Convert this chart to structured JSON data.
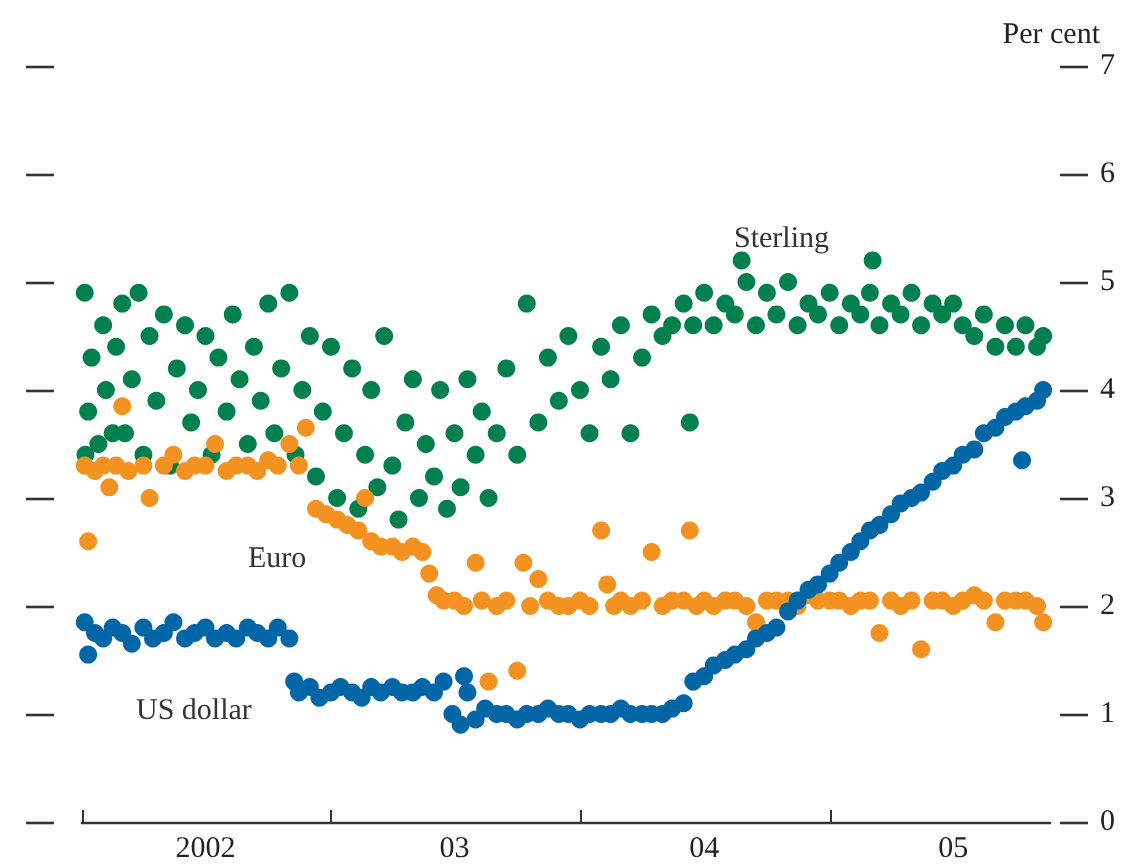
{
  "chart_data": {
    "type": "scatter",
    "ylabel": "Per cent",
    "marker": "circle",
    "grid": false,
    "legend": false,
    "xlim": [
      "2002-01-01",
      "2005-11-20"
    ],
    "xticks": [
      {
        "value": "2002-01-01",
        "label": null
      },
      {
        "value": "2002-07-01",
        "label": "2002"
      },
      {
        "value": "2003-01-01",
        "label": null
      },
      {
        "value": "2003-07-01",
        "label": "03"
      },
      {
        "value": "2004-01-01",
        "label": null
      },
      {
        "value": "2004-07-01",
        "label": "04"
      },
      {
        "value": "2005-01-01",
        "label": null
      },
      {
        "value": "2005-07-01",
        "label": "05"
      }
    ],
    "ylim": [
      0,
      7
    ],
    "yticks": [
      0,
      1,
      2,
      3,
      4,
      5,
      6,
      7
    ],
    "series": [
      {
        "name": "Sterling",
        "color": "#00804f",
        "x": [
          "2002-01-05",
          "2002-01-06",
          "2002-01-10",
          "2002-01-15",
          "2002-01-25",
          "2002-02-01",
          "2002-02-05",
          "2002-02-15",
          "2002-02-20",
          "2002-03-01",
          "2002-03-05",
          "2002-03-15",
          "2002-03-25",
          "2002-04-01",
          "2002-04-10",
          "2002-04-20",
          "2002-05-01",
          "2002-05-10",
          "2002-05-20",
          "2002-06-01",
          "2002-06-10",
          "2002-06-20",
          "2002-07-01",
          "2002-07-10",
          "2002-07-20",
          "2002-08-01",
          "2002-08-10",
          "2002-08-20",
          "2002-09-01",
          "2002-09-10",
          "2002-09-20",
          "2002-10-01",
          "2002-10-10",
          "2002-10-20",
          "2002-11-01",
          "2002-11-10",
          "2002-11-20",
          "2002-12-01",
          "2002-12-10",
          "2002-12-20",
          "2003-01-01",
          "2003-01-10",
          "2003-01-20",
          "2003-02-01",
          "2003-02-10",
          "2003-02-20",
          "2003-03-01",
          "2003-03-10",
          "2003-03-20",
          "2003-04-01",
          "2003-04-10",
          "2003-04-20",
          "2003-05-01",
          "2003-05-10",
          "2003-05-20",
          "2003-06-01",
          "2003-06-10",
          "2003-06-20",
          "2003-07-01",
          "2003-07-10",
          "2003-07-20",
          "2003-08-01",
          "2003-08-10",
          "2003-08-20",
          "2003-09-01",
          "2003-09-15",
          "2003-10-01",
          "2003-10-15",
          "2003-11-01",
          "2003-11-15",
          "2003-12-01",
          "2003-12-15",
          "2004-01-01",
          "2004-01-15",
          "2004-02-01",
          "2004-02-15",
          "2004-03-01",
          "2004-03-15",
          "2004-04-01",
          "2004-04-15",
          "2004-05-01",
          "2004-05-15",
          "2004-06-01",
          "2004-06-10",
          "2004-06-15",
          "2004-07-01",
          "2004-07-15",
          "2004-08-01",
          "2004-08-15",
          "2004-08-25",
          "2004-09-01",
          "2004-09-15",
          "2004-10-01",
          "2004-10-15",
          "2004-11-01",
          "2004-11-15",
          "2004-12-01",
          "2004-12-15",
          "2005-01-01",
          "2005-01-15",
          "2005-02-01",
          "2005-02-15",
          "2005-03-01",
          "2005-03-05",
          "2005-03-15",
          "2005-04-01",
          "2005-04-15",
          "2005-05-01",
          "2005-05-15",
          "2005-06-01",
          "2005-06-15",
          "2005-07-01",
          "2005-07-15",
          "2005-08-01",
          "2005-08-15",
          "2005-09-01",
          "2005-09-15",
          "2005-10-01",
          "2005-10-15",
          "2005-11-01",
          "2005-11-10"
        ],
        "values": [
          4.9,
          3.4,
          3.8,
          4.3,
          3.5,
          4.6,
          4.0,
          3.6,
          4.4,
          4.8,
          3.6,
          4.1,
          4.9,
          3.4,
          4.5,
          3.9,
          4.7,
          3.3,
          4.2,
          4.6,
          3.7,
          4.0,
          4.5,
          3.4,
          4.3,
          3.8,
          4.7,
          4.1,
          3.5,
          4.4,
          3.9,
          4.8,
          3.6,
          4.2,
          4.9,
          3.4,
          4.0,
          4.5,
          3.2,
          3.8,
          4.4,
          3.0,
          3.6,
          4.2,
          2.9,
          3.4,
          4.0,
          3.1,
          4.5,
          3.3,
          2.8,
          3.7,
          4.1,
          3.0,
          3.5,
          3.2,
          4.0,
          2.9,
          3.6,
          3.1,
          4.1,
          3.4,
          3.8,
          3.0,
          3.6,
          4.2,
          3.4,
          4.8,
          3.7,
          4.3,
          3.9,
          4.5,
          4.0,
          3.6,
          4.4,
          4.1,
          4.6,
          3.6,
          4.3,
          4.7,
          4.5,
          4.6,
          4.8,
          3.7,
          4.6,
          4.9,
          4.6,
          4.8,
          4.7,
          5.2,
          5.0,
          4.6,
          4.9,
          4.7,
          5.0,
          4.6,
          4.8,
          4.7,
          4.9,
          4.6,
          4.8,
          4.7,
          4.9,
          5.2,
          4.6,
          4.8,
          4.7,
          4.9,
          4.6,
          4.8,
          4.7,
          4.8,
          4.6,
          4.5,
          4.7,
          4.4,
          4.6,
          4.4,
          4.6,
          4.4,
          4.5
        ]
      },
      {
        "name": "Euro",
        "color": "#f39221",
        "x": [
          "2002-01-05",
          "2002-01-10",
          "2002-01-20",
          "2002-02-01",
          "2002-02-10",
          "2002-02-20",
          "2002-03-01",
          "2002-03-10",
          "2002-04-01",
          "2002-04-10",
          "2002-05-01",
          "2002-05-15",
          "2002-06-01",
          "2002-06-15",
          "2002-07-01",
          "2002-07-15",
          "2002-08-01",
          "2002-08-15",
          "2002-09-01",
          "2002-09-15",
          "2002-10-01",
          "2002-10-15",
          "2002-11-01",
          "2002-11-15",
          "2002-11-25",
          "2002-12-10",
          "2002-12-25",
          "2003-01-10",
          "2003-01-25",
          "2003-02-10",
          "2003-02-20",
          "2003-03-01",
          "2003-03-15",
          "2003-04-01",
          "2003-04-15",
          "2003-05-01",
          "2003-05-15",
          "2003-05-25",
          "2003-06-05",
          "2003-06-15",
          "2003-07-01",
          "2003-07-15",
          "2003-08-01",
          "2003-08-10",
          "2003-08-20",
          "2003-09-01",
          "2003-09-15",
          "2003-10-01",
          "2003-10-10",
          "2003-10-20",
          "2003-11-01",
          "2003-11-15",
          "2003-12-01",
          "2003-12-15",
          "2004-01-01",
          "2004-01-15",
          "2004-02-01",
          "2004-02-10",
          "2004-02-20",
          "2004-03-01",
          "2004-03-15",
          "2004-04-01",
          "2004-04-15",
          "2004-05-01",
          "2004-05-15",
          "2004-06-01",
          "2004-06-10",
          "2004-06-20",
          "2004-07-01",
          "2004-07-15",
          "2004-08-01",
          "2004-08-15",
          "2004-09-01",
          "2004-09-15",
          "2004-10-01",
          "2004-10-15",
          "2004-11-01",
          "2004-11-15",
          "2004-12-01",
          "2004-12-15",
          "2005-01-01",
          "2005-01-15",
          "2005-02-01",
          "2005-02-15",
          "2005-03-01",
          "2005-03-15",
          "2005-04-01",
          "2005-04-15",
          "2005-05-01",
          "2005-05-15",
          "2005-06-01",
          "2005-06-15",
          "2005-07-01",
          "2005-07-15",
          "2005-08-01",
          "2005-08-15",
          "2005-09-01",
          "2005-09-15",
          "2005-10-01",
          "2005-10-15",
          "2005-11-01",
          "2005-11-10"
        ],
        "values": [
          3.3,
          2.6,
          3.25,
          3.3,
          3.1,
          3.3,
          3.85,
          3.25,
          3.3,
          3.0,
          3.3,
          3.4,
          3.25,
          3.3,
          3.3,
          3.5,
          3.25,
          3.3,
          3.3,
          3.25,
          3.35,
          3.3,
          3.5,
          3.3,
          3.65,
          2.9,
          2.85,
          2.8,
          2.75,
          2.7,
          3.0,
          2.6,
          2.55,
          2.55,
          2.5,
          2.55,
          2.5,
          2.3,
          2.1,
          2.05,
          2.05,
          2.0,
          2.4,
          2.05,
          1.3,
          2.0,
          2.05,
          1.4,
          2.4,
          2.0,
          2.25,
          2.05,
          2.0,
          2.0,
          2.05,
          2.0,
          2.7,
          2.2,
          2.0,
          2.05,
          2.0,
          2.05,
          2.5,
          2.0,
          2.05,
          2.05,
          2.7,
          2.0,
          2.05,
          2.0,
          2.05,
          2.05,
          2.0,
          1.85,
          2.05,
          2.05,
          2.05,
          2.0,
          2.1,
          2.05,
          2.05,
          2.05,
          2.0,
          2.05,
          2.05,
          1.75,
          2.05,
          2.0,
          2.05,
          1.6,
          2.05,
          2.05,
          2.0,
          2.05,
          2.1,
          2.05,
          1.85,
          2.05,
          2.05,
          2.05,
          2.0,
          1.85
        ]
      },
      {
        "name": "US dollar",
        "color": "#0066a6",
        "x": [
          "2002-01-05",
          "2002-01-10",
          "2002-01-20",
          "2002-02-01",
          "2002-02-15",
          "2002-03-01",
          "2002-03-15",
          "2002-04-01",
          "2002-04-15",
          "2002-05-01",
          "2002-05-15",
          "2002-06-01",
          "2002-06-15",
          "2002-07-01",
          "2002-07-15",
          "2002-08-01",
          "2002-08-15",
          "2002-09-01",
          "2002-09-15",
          "2002-10-01",
          "2002-10-15",
          "2002-11-01",
          "2002-11-08",
          "2002-11-15",
          "2002-12-01",
          "2002-12-15",
          "2003-01-01",
          "2003-01-15",
          "2003-02-01",
          "2003-02-15",
          "2003-03-01",
          "2003-03-15",
          "2003-04-01",
          "2003-04-15",
          "2003-05-01",
          "2003-05-15",
          "2003-06-01",
          "2003-06-15",
          "2003-06-28",
          "2003-07-10",
          "2003-07-15",
          "2003-07-20",
          "2003-08-01",
          "2003-08-15",
          "2003-09-01",
          "2003-09-15",
          "2003-10-01",
          "2003-10-15",
          "2003-11-01",
          "2003-11-15",
          "2003-12-01",
          "2003-12-15",
          "2004-01-01",
          "2004-01-15",
          "2004-02-01",
          "2004-02-15",
          "2004-03-01",
          "2004-03-15",
          "2004-04-01",
          "2004-04-15",
          "2004-05-01",
          "2004-05-15",
          "2004-06-01",
          "2004-06-15",
          "2004-07-01",
          "2004-07-15",
          "2004-08-01",
          "2004-08-15",
          "2004-09-01",
          "2004-09-15",
          "2004-10-01",
          "2004-10-15",
          "2004-11-01",
          "2004-11-15",
          "2004-12-01",
          "2004-12-15",
          "2005-01-01",
          "2005-01-15",
          "2005-02-01",
          "2005-02-15",
          "2005-03-01",
          "2005-03-15",
          "2005-04-01",
          "2005-04-15",
          "2005-05-01",
          "2005-05-15",
          "2005-06-01",
          "2005-06-15",
          "2005-07-01",
          "2005-07-15",
          "2005-08-01",
          "2005-08-15",
          "2005-09-01",
          "2005-09-15",
          "2005-10-01",
          "2005-10-10",
          "2005-10-15",
          "2005-11-01",
          "2005-11-10"
        ],
        "values": [
          1.85,
          1.55,
          1.75,
          1.7,
          1.8,
          1.75,
          1.65,
          1.8,
          1.7,
          1.75,
          1.85,
          1.7,
          1.75,
          1.8,
          1.7,
          1.75,
          1.7,
          1.8,
          1.75,
          1.7,
          1.8,
          1.7,
          1.3,
          1.2,
          1.25,
          1.15,
          1.2,
          1.25,
          1.2,
          1.15,
          1.25,
          1.2,
          1.25,
          1.2,
          1.2,
          1.25,
          1.2,
          1.3,
          1.0,
          0.9,
          1.35,
          1.2,
          0.95,
          1.05,
          1.0,
          1.0,
          0.95,
          1.0,
          1.0,
          1.05,
          1.0,
          1.0,
          0.95,
          1.0,
          1.0,
          1.0,
          1.05,
          1.0,
          1.0,
          1.0,
          1.0,
          1.05,
          1.1,
          1.3,
          1.35,
          1.45,
          1.5,
          1.55,
          1.6,
          1.7,
          1.75,
          1.8,
          1.95,
          2.05,
          2.15,
          2.2,
          2.3,
          2.4,
          2.5,
          2.6,
          2.7,
          2.75,
          2.85,
          2.95,
          3.0,
          3.05,
          3.15,
          3.25,
          3.3,
          3.4,
          3.45,
          3.6,
          3.65,
          3.75,
          3.8,
          3.35,
          3.85,
          3.9,
          4.0
        ]
      }
    ]
  }
}
